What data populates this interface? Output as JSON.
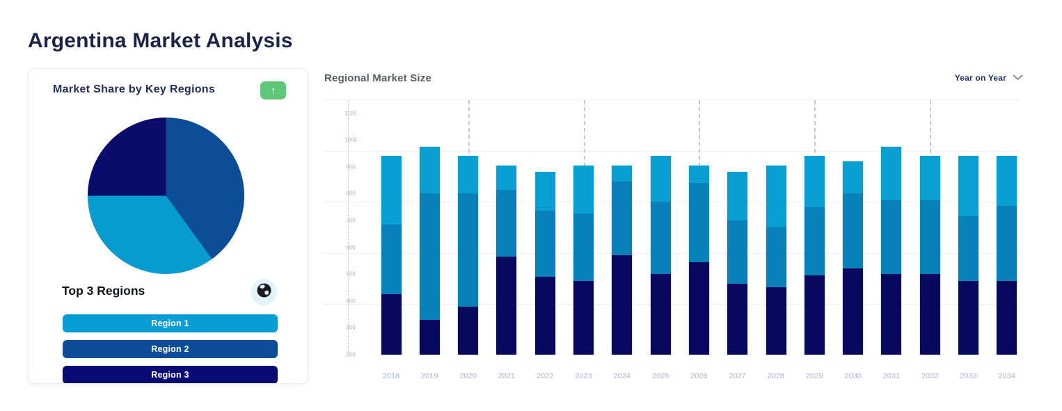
{
  "page": {
    "title": "Argentina Market Analysis"
  },
  "share_card": {
    "title": "Market Share by Key Regions",
    "trend_button": {
      "glyph": "↑",
      "color": "#5ec878"
    },
    "subtitle": "Top 3 Regions",
    "globe_icon": "globe",
    "regions": [
      {
        "label": "Region 1",
        "color": "#0a9cd4"
      },
      {
        "label": "Region 2",
        "color": "#0c4c99"
      },
      {
        "label": "Region 3",
        "color": "#0a0a73"
      }
    ]
  },
  "market_size": {
    "title": "Regional Market Size",
    "dropdown": {
      "label": "Year on Year",
      "icon": "chevron-down"
    }
  },
  "chart_data": [
    {
      "type": "pie",
      "title": "Market Share by Key Regions",
      "slices": [
        {
          "label": "Region 2",
          "value": 40,
          "color": "#0b4d97"
        },
        {
          "label": "Region 1",
          "value": 35,
          "color": "#089cce"
        },
        {
          "label": "Region 3",
          "value": 25,
          "color": "#0b0b6b"
        }
      ],
      "start_angle_deg": 0,
      "direction": "clockwise",
      "legend": "none"
    },
    {
      "type": "bar",
      "stacked": true,
      "title": "Regional Market Size",
      "categories": [
        "2018",
        "2019",
        "2020",
        "2021",
        "2022",
        "2023",
        "2024",
        "2025",
        "2026",
        "2027",
        "2028",
        "2029",
        "2030",
        "2031",
        "2032",
        "2033",
        "2034"
      ],
      "series": [
        {
          "name": "stack-bottom",
          "color": "#08085e",
          "values": [
            425,
            330,
            380,
            565,
            490,
            475,
            570,
            500,
            545,
            465,
            450,
            495,
            520,
            500,
            500,
            475,
            475
          ]
        },
        {
          "name": "stack-middle",
          "color": "#0881bb",
          "values": [
            260,
            470,
            420,
            250,
            245,
            250,
            275,
            270,
            295,
            235,
            225,
            255,
            280,
            275,
            275,
            240,
            280
          ]
        },
        {
          "name": "stack-top",
          "color": "#099fd2",
          "values": [
            255,
            175,
            140,
            90,
            145,
            180,
            60,
            170,
            65,
            180,
            230,
            190,
            120,
            200,
            165,
            225,
            185
          ]
        }
      ],
      "ylim": [
        200,
        1100
      ],
      "yticks": [
        200,
        300,
        400,
        500,
        600,
        700,
        800,
        900,
        1000,
        1100
      ],
      "grid": "horizontal-sparse",
      "dashed_guides_at": [
        "2020",
        "2023",
        "2026",
        "2029",
        "2032"
      ],
      "legend": "none"
    }
  ]
}
